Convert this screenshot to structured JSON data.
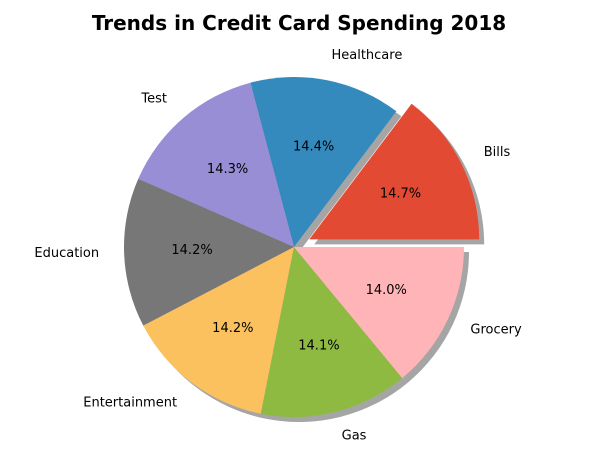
{
  "chart_data": {
    "type": "pie",
    "title": "Trends in Credit Card Spending 2018",
    "categories": [
      "Bills",
      "Healthcare",
      "Test",
      "Education",
      "Entertainment",
      "Gas",
      "Grocery"
    ],
    "values": [
      14.7,
      14.4,
      14.3,
      14.2,
      14.2,
      14.1,
      14.0
    ],
    "percent_labels": [
      "14.7%",
      "14.4%",
      "14.3%",
      "14.2%",
      "14.2%",
      "14.1%",
      "14.0%"
    ],
    "colors": [
      "#e24a33",
      "#348abd",
      "#988ed5",
      "#777777",
      "#fbc15e",
      "#8eba42",
      "#ffb5b8"
    ],
    "explode": [
      0.1,
      0,
      0,
      0,
      0,
      0,
      0
    ],
    "shadow": true,
    "start_angle_degrees": 0,
    "direction": "counterclockwise"
  }
}
